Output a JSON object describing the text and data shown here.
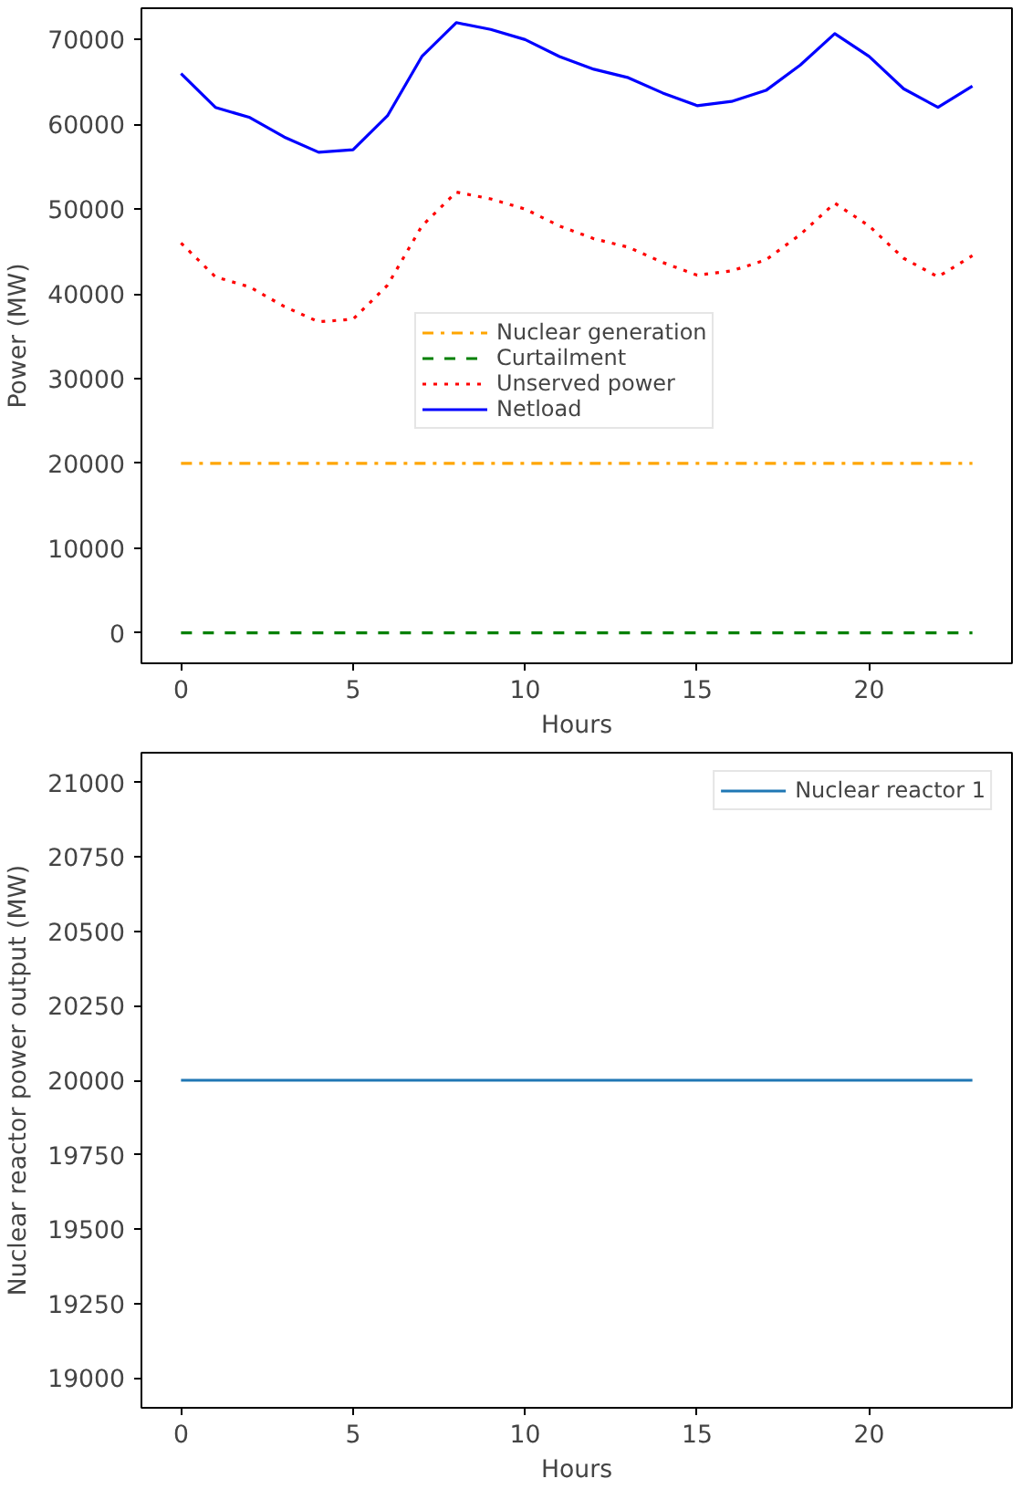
{
  "chart_data": [
    {
      "type": "line",
      "xlabel": "Hours",
      "ylabel": "Power (MW)",
      "x": [
        0,
        1,
        2,
        3,
        4,
        5,
        6,
        7,
        8,
        9,
        10,
        11,
        12,
        13,
        14,
        15,
        16,
        17,
        18,
        19,
        20,
        21,
        22,
        23
      ],
      "xlim": [
        -1.15,
        24.15
      ],
      "xticks": [
        0,
        5,
        10,
        15,
        20
      ],
      "ylim": [
        -3600,
        73700
      ],
      "yticks": [
        0,
        10000,
        20000,
        30000,
        40000,
        50000,
        60000,
        70000
      ],
      "legend": "center",
      "grid": false,
      "series": [
        {
          "name": "Nuclear generation",
          "color": "#ffa500",
          "line_style": "dashdot",
          "values": [
            20000,
            20000,
            20000,
            20000,
            20000,
            20000,
            20000,
            20000,
            20000,
            20000,
            20000,
            20000,
            20000,
            20000,
            20000,
            20000,
            20000,
            20000,
            20000,
            20000,
            20000,
            20000,
            20000,
            20000
          ]
        },
        {
          "name": "Curtailment",
          "color": "#008000",
          "line_style": "dashed",
          "values": [
            0,
            0,
            0,
            0,
            0,
            0,
            0,
            0,
            0,
            0,
            0,
            0,
            0,
            0,
            0,
            0,
            0,
            0,
            0,
            0,
            0,
            0,
            0,
            0
          ]
        },
        {
          "name": "Unserved power",
          "color": "#ff0000",
          "line_style": "dotted",
          "values": [
            46000,
            42000,
            40800,
            38500,
            36700,
            37000,
            41000,
            48000,
            52000,
            51200,
            50000,
            48000,
            46500,
            45500,
            43700,
            42200,
            42700,
            44000,
            47000,
            50700,
            48000,
            44200,
            42000,
            44500
          ]
        },
        {
          "name": "Netload",
          "color": "#0000ff",
          "line_style": "solid",
          "values": [
            66000,
            62000,
            60800,
            58500,
            56700,
            57000,
            61000,
            68000,
            72000,
            71200,
            70000,
            68000,
            66500,
            65500,
            63700,
            62200,
            62700,
            64000,
            67000,
            70700,
            68000,
            64200,
            62000,
            64500
          ]
        }
      ]
    },
    {
      "type": "line",
      "xlabel": "Hours",
      "ylabel": "Nuclear reactor power output (MW)",
      "x": [
        0,
        1,
        2,
        3,
        4,
        5,
        6,
        7,
        8,
        9,
        10,
        11,
        12,
        13,
        14,
        15,
        16,
        17,
        18,
        19,
        20,
        21,
        22,
        23
      ],
      "xlim": [
        -1.15,
        24.15
      ],
      "xticks": [
        0,
        5,
        10,
        15,
        20
      ],
      "ylim": [
        18900,
        21100
      ],
      "yticks": [
        19000,
        19250,
        19500,
        19750,
        20000,
        20250,
        20500,
        20750,
        21000
      ],
      "legend": "top right",
      "grid": false,
      "series": [
        {
          "name": "Nuclear reactor 1",
          "color": "#1f77b4",
          "line_style": "solid",
          "values": [
            20000,
            20000,
            20000,
            20000,
            20000,
            20000,
            20000,
            20000,
            20000,
            20000,
            20000,
            20000,
            20000,
            20000,
            20000,
            20000,
            20000,
            20000,
            20000,
            20000,
            20000,
            20000,
            20000,
            20000
          ]
        }
      ]
    }
  ]
}
